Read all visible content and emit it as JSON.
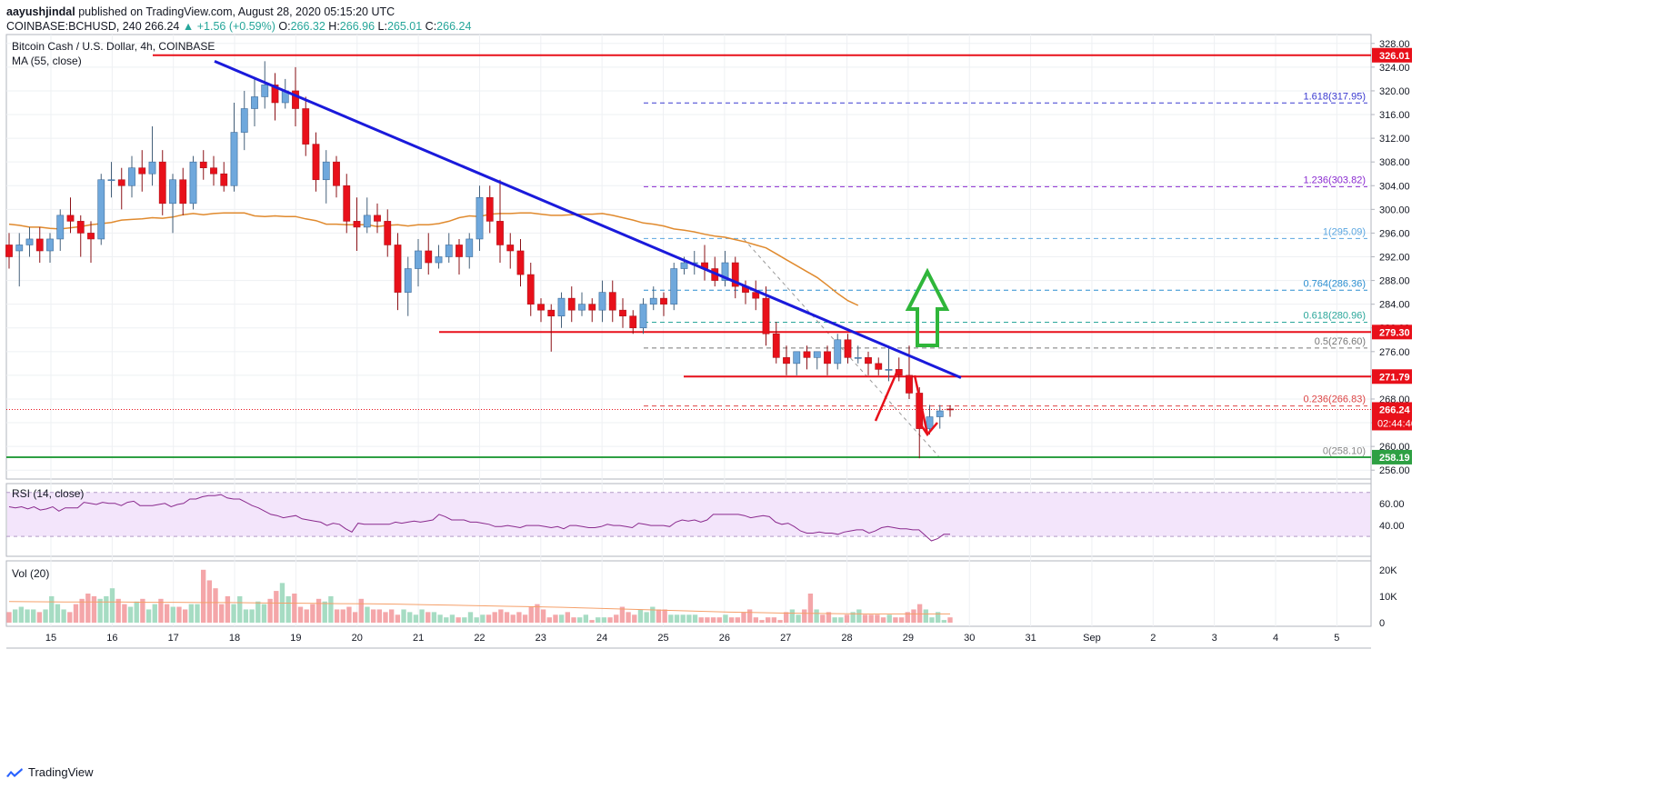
{
  "header": {
    "line1_user": "aayushjindal",
    "line1_rest": "published on TradingView.com, August 28, 2020 05:15:20 UTC",
    "symbol": "COINBASE:BCHUSD, 240",
    "last": "266.24",
    "change": "▲ +1.56 (+0.59%)",
    "o_label": "O:",
    "o": "266.32",
    "h_label": "H:",
    "h": "266.96",
    "l_label": "L:",
    "l": "265.01",
    "c_label": "C:",
    "c": "266.24"
  },
  "legend": {
    "title": "Bitcoin Cash / U.S. Dollar, 4h, COINBASE",
    "ma": "MA (55, close)",
    "rsi": "RSI (14, close)",
    "vol": "Vol (20)"
  },
  "footer": {
    "brand": "TradingView"
  },
  "colors": {
    "up": "#6fa8dc",
    "down": "#e8101a",
    "ma": "#e08a2e",
    "trend": "#1a1adb",
    "support": "#e8101a",
    "green_support": "#2ea043",
    "rsi": "#8a2a8e",
    "rsi_band": "#f3e5fb",
    "vol_up": "#a6dcc3",
    "vol_down": "#f4a6a9",
    "arrow_green": "#2fb63a",
    "arrow_red": "#e8101a"
  },
  "chart_data": {
    "type": "candlestick",
    "x_ticks": [
      "15",
      "16",
      "17",
      "18",
      "19",
      "20",
      "21",
      "22",
      "23",
      "24",
      "25",
      "26",
      "27",
      "28",
      "29",
      "30",
      "31",
      "Sep",
      "2",
      "3",
      "4",
      "5"
    ],
    "y_ticks": [
      "256.00",
      "260.00",
      "264.00",
      "268.00",
      "272.00",
      "276.00",
      "280.00",
      "284.00",
      "288.00",
      "292.00",
      "296.00",
      "300.00",
      "304.00",
      "308.00",
      "312.00",
      "316.00",
      "320.00",
      "324.00",
      "328.00"
    ],
    "ylim": [
      254.5,
      329.5
    ],
    "candles": [
      [
        294,
        292,
        290,
        296
      ],
      [
        293,
        294,
        287,
        296
      ],
      [
        294,
        295,
        292,
        297
      ],
      [
        295,
        293,
        291,
        297
      ],
      [
        293,
        295,
        291,
        296
      ],
      [
        295,
        299,
        293,
        300
      ],
      [
        299,
        298,
        296,
        302
      ],
      [
        298,
        296,
        292,
        299
      ],
      [
        296,
        295,
        291,
        298
      ],
      [
        295,
        305,
        294,
        306
      ],
      [
        305,
        305,
        302,
        308
      ],
      [
        305,
        304,
        300,
        307
      ],
      [
        304,
        307,
        302,
        309
      ],
      [
        307,
        306,
        303,
        310
      ],
      [
        306,
        308,
        304,
        314
      ],
      [
        308,
        301,
        299,
        310
      ],
      [
        301,
        305,
        296,
        306
      ],
      [
        305,
        301,
        299,
        307
      ],
      [
        301,
        308,
        300,
        309
      ],
      [
        308,
        307,
        305,
        310
      ],
      [
        307,
        306,
        304,
        309
      ],
      [
        306,
        304,
        303,
        308
      ],
      [
        304,
        313,
        303,
        318
      ],
      [
        313,
        317,
        310,
        320
      ],
      [
        317,
        319,
        314,
        322
      ],
      [
        319,
        321,
        317,
        325
      ],
      [
        321,
        318,
        315,
        323
      ],
      [
        318,
        320,
        317,
        322
      ],
      [
        320,
        317,
        314,
        324
      ],
      [
        317,
        311,
        309,
        319
      ],
      [
        311,
        305,
        303,
        313
      ],
      [
        305,
        308,
        301,
        310
      ],
      [
        308,
        304,
        302,
        309
      ],
      [
        304,
        298,
        296,
        306
      ],
      [
        298,
        297,
        293,
        302
      ],
      [
        297,
        299,
        296,
        302
      ],
      [
        299,
        298,
        296,
        301
      ],
      [
        298,
        294,
        292,
        300
      ],
      [
        294,
        286,
        283,
        296
      ],
      [
        286,
        290,
        282,
        292
      ],
      [
        290,
        293,
        287,
        295
      ],
      [
        293,
        291,
        289,
        296
      ],
      [
        291,
        292,
        290,
        294
      ],
      [
        292,
        294,
        291,
        296
      ],
      [
        294,
        292,
        289,
        295
      ],
      [
        292,
        295,
        290,
        296
      ],
      [
        295,
        302,
        293,
        304
      ],
      [
        302,
        298,
        296,
        304
      ],
      [
        298,
        294,
        291,
        305
      ],
      [
        294,
        293,
        290,
        296
      ],
      [
        293,
        289,
        287,
        295
      ],
      [
        289,
        284,
        282,
        291
      ],
      [
        284,
        283,
        281,
        285
      ],
      [
        283,
        282,
        276,
        284
      ],
      [
        282,
        285,
        280,
        286
      ],
      [
        285,
        283,
        281,
        287
      ],
      [
        283,
        284,
        282,
        286
      ],
      [
        284,
        283,
        281,
        285
      ],
      [
        283,
        286,
        281,
        288
      ],
      [
        286,
        283,
        281,
        288
      ],
      [
        283,
        282,
        280,
        285
      ],
      [
        282,
        280,
        279,
        283
      ],
      [
        280,
        284,
        279,
        285
      ],
      [
        284,
        285,
        283,
        287
      ],
      [
        285,
        284,
        282,
        286
      ],
      [
        284,
        290,
        283,
        291
      ],
      [
        290,
        291,
        289,
        292
      ],
      [
        291,
        291,
        289,
        293
      ],
      [
        291,
        290,
        288,
        294
      ],
      [
        290,
        288,
        287,
        292
      ],
      [
        288,
        291,
        287,
        293
      ],
      [
        291,
        287,
        285,
        292
      ],
      [
        287,
        286,
        284,
        288
      ],
      [
        286,
        285,
        283,
        288
      ],
      [
        285,
        279,
        277,
        287
      ],
      [
        279,
        275,
        274,
        281
      ],
      [
        275,
        274,
        272,
        277
      ],
      [
        274,
        276,
        272,
        276
      ],
      [
        276,
        275,
        273,
        277
      ],
      [
        275,
        276,
        273,
        276
      ],
      [
        276,
        274,
        272,
        277
      ],
      [
        274,
        278,
        273,
        279
      ],
      [
        278,
        275,
        274,
        279
      ],
      [
        275,
        275,
        274,
        277
      ],
      [
        275,
        274,
        272,
        276
      ],
      [
        274,
        273,
        272,
        275
      ],
      [
        273,
        273,
        271,
        277
      ],
      [
        273,
        272,
        271,
        275
      ],
      [
        272,
        269,
        268,
        277
      ],
      [
        269,
        263,
        258,
        270
      ],
      [
        263,
        265,
        262,
        267
      ],
      [
        265,
        266,
        263,
        267
      ],
      [
        266.32,
        266.24,
        265.01,
        266.96
      ]
    ],
    "ma55": [
      297.5,
      297.3,
      297,
      297,
      296.8,
      296.7,
      296.9,
      297.1,
      297.4,
      297.6,
      297.8,
      298.2,
      298.3,
      298.4,
      298.6,
      298.5,
      298.7,
      299.1,
      299.3,
      299.1,
      299.3,
      299.4,
      299.4,
      299.4,
      298.9,
      298.8,
      298.9,
      298.8,
      298.8,
      298.4,
      298.1,
      297.5,
      297.5,
      297.4,
      297.4,
      297.4,
      297.1,
      297.3,
      297.4,
      297.2,
      297.4,
      297.4,
      297.6,
      298,
      298.6,
      298.9,
      298.8,
      299.2,
      299.3,
      299.3,
      299.4,
      299.4,
      299.2,
      299,
      299,
      299.1,
      299.2,
      299.2,
      299.3,
      299,
      298.6,
      298.2,
      297.7,
      297.5,
      297.2,
      296.7,
      296.5,
      296.2,
      295.8,
      295.5,
      295.3,
      294.9,
      294.5,
      294,
      293.5,
      292.5,
      291.5,
      290.5,
      289.5,
      288.5,
      287.2,
      285.8,
      284.6,
      283.8
    ],
    "annotations": {
      "resistance": [
        "326.01",
        "279.30",
        "271.79"
      ],
      "support": "258.19",
      "last_price": "266.24",
      "countdown": "02:44:46",
      "fib": [
        {
          "ratio": "0",
          "value": "258.10"
        },
        {
          "ratio": "0.236",
          "value": "266.83"
        },
        {
          "ratio": "0.5",
          "value": "276.60"
        },
        {
          "ratio": "0.618",
          "value": "280.96"
        },
        {
          "ratio": "0.764",
          "value": "286.36"
        },
        {
          "ratio": "1",
          "value": "295.09"
        },
        {
          "ratio": "1.236",
          "value": "303.82"
        },
        {
          "ratio": "1.618",
          "value": "317.95"
        }
      ]
    },
    "rsi": {
      "title": "RSI (14, close)",
      "ticks": [
        "40.00",
        "60.00"
      ],
      "band": [
        30,
        70
      ],
      "values": [
        57,
        56,
        57,
        55,
        57,
        54,
        55,
        57,
        53,
        56,
        56,
        56,
        61,
        60,
        59,
        61,
        60,
        60,
        58,
        61,
        62,
        58,
        58,
        58,
        59,
        60,
        57,
        59,
        60,
        64,
        64,
        66,
        67,
        67,
        68,
        65,
        64,
        64,
        61,
        58,
        56,
        53,
        50,
        49,
        47,
        48,
        49,
        46,
        45,
        44,
        43,
        40,
        42,
        41,
        37,
        34,
        42,
        41,
        41,
        41,
        41,
        41,
        43,
        42,
        43,
        44,
        43,
        44,
        45,
        50,
        48,
        45,
        45,
        45,
        43,
        43,
        42,
        41,
        39,
        39,
        40,
        39,
        38,
        40,
        40,
        40,
        39,
        38,
        39,
        37,
        40,
        40,
        39,
        38,
        38,
        39,
        41,
        40,
        40,
        39,
        38,
        42,
        41,
        40,
        40,
        40,
        39,
        43,
        45,
        44,
        45,
        43,
        45,
        50,
        50,
        50,
        50,
        50,
        49,
        47,
        48,
        49,
        48,
        43,
        41,
        42,
        39,
        35,
        33,
        33,
        34,
        33,
        33,
        32,
        34,
        35,
        36,
        36,
        33,
        35,
        38,
        39,
        38,
        37,
        37,
        36,
        36,
        31,
        26,
        28,
        32,
        32
      ]
    },
    "volume": {
      "title": "Vol (20)",
      "ticks": [
        "0",
        "10K",
        "20K"
      ],
      "values": [
        4,
        5,
        6,
        5,
        5,
        4,
        5,
        10,
        7,
        5,
        4,
        7,
        9,
        11,
        10,
        9,
        10,
        13,
        9,
        7,
        6,
        8,
        9,
        5,
        7,
        9,
        7,
        6,
        6,
        5,
        7,
        7,
        20,
        16,
        13,
        7,
        10,
        7,
        10,
        5,
        5,
        8,
        7,
        9,
        12,
        15,
        10,
        11,
        6,
        5,
        7,
        9,
        8,
        10,
        5,
        5,
        6,
        4,
        9,
        6,
        5,
        5,
        4,
        5,
        3,
        5,
        4,
        3,
        5,
        4,
        4,
        3,
        2,
        3,
        2,
        2,
        4,
        2,
        3,
        3,
        4,
        5,
        4,
        3,
        4,
        3,
        6,
        7,
        5,
        2,
        3,
        3,
        4,
        2,
        2,
        3,
        1,
        2,
        2,
        2,
        3,
        6,
        4,
        3,
        5,
        4,
        6,
        5,
        5,
        3,
        3,
        3,
        3,
        3,
        2,
        2,
        2,
        2,
        3,
        2,
        2,
        4,
        5,
        2,
        1,
        2,
        2,
        1,
        4,
        5,
        3,
        5,
        11,
        5,
        3,
        4,
        2,
        2,
        3,
        4,
        5,
        3,
        3,
        3,
        2,
        3,
        2,
        2,
        4,
        5,
        7,
        5,
        2,
        4,
        1,
        2
      ],
      "ma20": [
        8,
        7.9,
        7.8,
        7.8,
        7.8,
        7.7,
        7.7,
        7.6,
        7.6,
        7.5,
        7.4,
        7.3,
        7.2,
        7.1,
        7,
        6.8,
        6.6,
        6.4,
        6.2,
        6,
        5.8,
        5.5,
        5.2,
        4.9,
        4.6,
        4.3,
        4,
        3.8,
        3.6,
        3.5,
        3.4,
        3.3,
        3.3,
        3.3,
        3.3
      ]
    }
  }
}
